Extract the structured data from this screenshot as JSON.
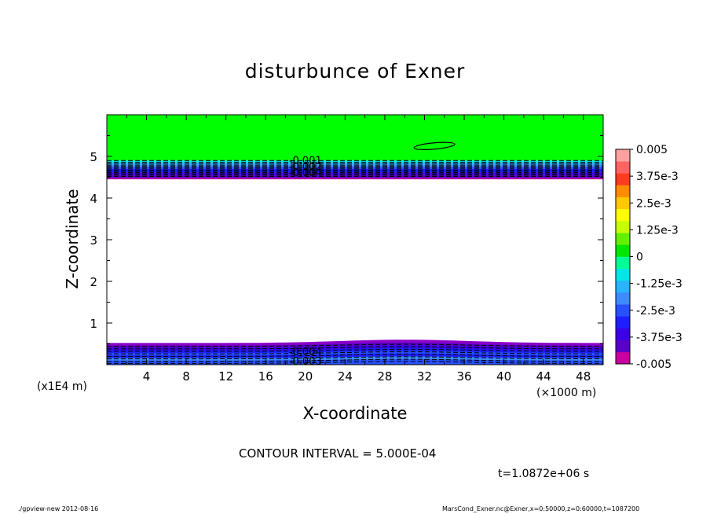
{
  "chart_data": {
    "type": "heatmap",
    "title": "disturbunce of Exner",
    "xlabel": "X-coordinate",
    "ylabel": "Z-coordinate",
    "x_unit_label": "(×1000 m)",
    "y_unit_label": "(x1E4 m)",
    "xlim": [
      0,
      50
    ],
    "ylim": [
      0,
      6
    ],
    "x_ticks": [
      "4",
      "8",
      "12",
      "16",
      "20",
      "24",
      "28",
      "32",
      "36",
      "40",
      "44",
      "48"
    ],
    "y_ticks": [
      "1",
      "2",
      "3",
      "4",
      "5"
    ],
    "colorbar": {
      "range": [
        -0.005,
        0.005
      ],
      "labels": [
        "0.005",
        "3.75e-3",
        "2.5e-3",
        "1.25e-3",
        "0",
        "-1.25e-3",
        "-2.5e-3",
        "-3.75e-3",
        "-0.005"
      ],
      "colors": [
        "#c800a0",
        "#5a00c8",
        "#3c00e6",
        "#1e1eff",
        "#2850ff",
        "#3c8cff",
        "#28b4ff",
        "#00e6e6",
        "#00ff96",
        "#00e600",
        "#64f000",
        "#c8ff00",
        "#ffff00",
        "#ffc800",
        "#ff8c00",
        "#ff3c1e",
        "#ff6464",
        "#ffa0a0"
      ]
    },
    "regions": [
      {
        "name": "upper-band",
        "z_from": 4.45,
        "z_to": 6.0,
        "color": "green-top-to-blue-purple",
        "min": -0.005
      },
      {
        "name": "lower-band",
        "z_from": 0.0,
        "z_to": 0.55,
        "color": "purple-to-blue",
        "min": -0.005
      }
    ],
    "contour_labels": [
      {
        "text": "-0.001",
        "x": 20,
        "z": 4.9
      },
      {
        "text": "-0.002",
        "x": 20,
        "z": 4.75
      },
      {
        "text": "-0.004",
        "x": 20,
        "z": 4.6
      },
      {
        "text": "-0.004",
        "x": 20,
        "z": 0.3
      },
      {
        "text": "-0.003",
        "x": 20,
        "z": 0.08
      }
    ],
    "small_contour": {
      "x": 33,
      "z": 5.25,
      "value": "0.000 closed contour"
    }
  },
  "contour_interval_text": "CONTOUR INTERVAL = 5.000E-04",
  "time_text": "t=1.0872e+06 s",
  "footer_left": "./gpview-new  2012-08-16",
  "footer_right": "MarsCond_Exner.nc@Exner,x=0:50000,z=0:60000,t=1087200"
}
